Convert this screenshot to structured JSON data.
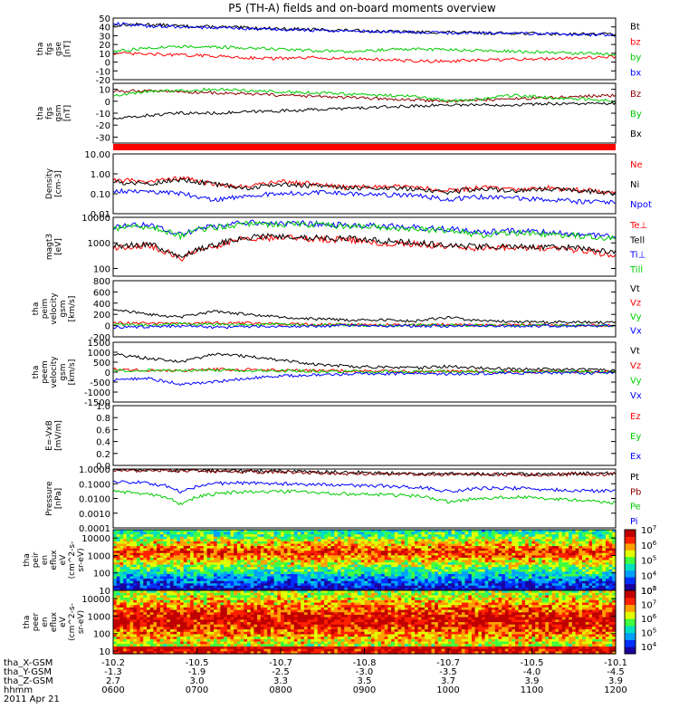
{
  "title": "P5 (TH-A) fields and on-board moments overview",
  "chart_data": [
    {
      "type": "line",
      "ylabel": "tha\nfgs\ngse\n[nT]",
      "ylim": [
        -20,
        50
      ],
      "yticks": [
        -20,
        -10,
        0,
        10,
        20,
        30,
        40,
        50
      ],
      "series": [
        {
          "name": "Bt",
          "color": "#000000",
          "values": [
            42,
            43,
            41,
            40,
            39,
            38,
            37,
            36,
            35,
            34,
            34,
            33,
            33,
            32,
            32,
            32
          ]
        },
        {
          "name": "bz",
          "color": "#ff0000",
          "values": [
            10,
            9,
            8,
            7,
            5,
            4,
            5,
            4,
            3,
            1,
            1,
            2,
            3,
            4,
            5,
            6
          ]
        },
        {
          "name": "by",
          "color": "#00cc00",
          "values": [
            12,
            16,
            18,
            17,
            16,
            15,
            13,
            12,
            14,
            15,
            14,
            13,
            12,
            11,
            10,
            9
          ]
        },
        {
          "name": "bx",
          "color": "#0000ff",
          "values": [
            44,
            41,
            40,
            39,
            38,
            37,
            36,
            35,
            35,
            34,
            33,
            33,
            33,
            32,
            31,
            31
          ]
        }
      ]
    },
    {
      "type": "line",
      "ylabel": "tha\nfgs\ngsm\n[nT]",
      "ylim": [
        -35,
        15
      ],
      "yticks": [
        -30,
        -20,
        -10,
        0,
        10
      ],
      "series": [
        {
          "name": "Bz",
          "color": "#8b0000",
          "values": [
            8,
            9,
            8,
            7,
            6,
            5,
            4,
            3,
            2,
            1,
            0,
            1,
            2,
            3,
            4,
            5
          ]
        },
        {
          "name": "By",
          "color": "#00cc00",
          "values": [
            5,
            8,
            9,
            10,
            9,
            8,
            7,
            6,
            5,
            4,
            0,
            2,
            5,
            3,
            2,
            0
          ]
        },
        {
          "name": "Bx",
          "color": "#000000",
          "values": [
            -15,
            -12,
            -10,
            -10,
            -9,
            -8,
            -7,
            -6,
            -5,
            -4,
            -3,
            -3,
            -3,
            -2,
            -2,
            -2
          ]
        }
      ]
    },
    {
      "type": "line",
      "ylabel": "Density\n[cm-3]",
      "yscale": "log",
      "ylim": [
        0.01,
        10
      ],
      "yticks": [
        0.01,
        0.1,
        1,
        10
      ],
      "ytick_labels": [
        "0.01",
        "0.10",
        "1.00",
        "10.00"
      ],
      "series": [
        {
          "name": "Ne",
          "color": "#ff0000",
          "values": [
            0.5,
            0.4,
            0.6,
            0.3,
            0.2,
            0.4,
            0.3,
            0.2,
            0.25,
            0.2,
            0.15,
            0.2,
            0.15,
            0.2,
            0.15,
            0.12
          ]
        },
        {
          "name": "Ni",
          "color": "#000000",
          "values": [
            0.4,
            0.3,
            0.5,
            0.3,
            0.2,
            0.3,
            0.25,
            0.2,
            0.2,
            0.18,
            0.12,
            0.18,
            0.14,
            0.18,
            0.14,
            0.1
          ]
        },
        {
          "name": "Npot",
          "color": "#0000ff",
          "values": [
            0.15,
            0.12,
            0.1,
            0.05,
            0.08,
            0.1,
            0.12,
            0.1,
            0.09,
            0.08,
            0.05,
            0.07,
            0.06,
            0.05,
            0.04,
            0.04
          ]
        }
      ]
    },
    {
      "type": "line",
      "ylabel": "magt3\n[eV]",
      "yscale": "log",
      "ylim": [
        50,
        10000
      ],
      "yticks": [
        100,
        1000,
        10000
      ],
      "ytick_labels": [
        "100",
        "1000",
        "10000"
      ],
      "series": [
        {
          "name": "Te⊥",
          "color": "#ff0000",
          "values": [
            600,
            800,
            200,
            700,
            1500,
            1600,
            1400,
            1300,
            1000,
            900,
            700,
            600,
            700,
            600,
            500,
            300
          ]
        },
        {
          "name": "Tell",
          "color": "#000000",
          "values": [
            700,
            900,
            250,
            800,
            1700,
            1800,
            1600,
            1500,
            1200,
            1000,
            800,
            700,
            800,
            700,
            600,
            400
          ]
        },
        {
          "name": "Ti⊥",
          "color": "#0000ff",
          "values": [
            4000,
            5000,
            2000,
            4500,
            6000,
            6000,
            5500,
            5000,
            4500,
            4000,
            3500,
            2500,
            3000,
            2500,
            2000,
            1800
          ]
        },
        {
          "name": "Till",
          "color": "#00cc00",
          "values": [
            3500,
            4500,
            1800,
            4000,
            5500,
            5500,
            5000,
            4500,
            4000,
            3500,
            3000,
            2000,
            2500,
            2200,
            1800,
            1500
          ]
        }
      ]
    },
    {
      "type": "line",
      "ylabel": "tha\npeim\nvelocity\ngsm\n[km/s]",
      "ylim": [
        -200,
        800
      ],
      "yticks": [
        -200,
        0,
        200,
        400,
        600,
        800
      ],
      "series": [
        {
          "name": "Vt",
          "color": "#000000",
          "values": [
            300,
            200,
            150,
            250,
            200,
            150,
            120,
            100,
            100,
            80,
            150,
            80,
            70,
            60,
            60,
            50
          ]
        },
        {
          "name": "Vz",
          "color": "#ff0000",
          "values": [
            50,
            40,
            30,
            50,
            40,
            30,
            20,
            20,
            10,
            10,
            20,
            10,
            10,
            10,
            5,
            5
          ]
        },
        {
          "name": "Vy",
          "color": "#00cc00",
          "values": [
            20,
            10,
            30,
            20,
            10,
            20,
            10,
            10,
            5,
            5,
            10,
            5,
            5,
            5,
            5,
            5
          ]
        },
        {
          "name": "Vx",
          "color": "#0000ff",
          "values": [
            -30,
            -20,
            -10,
            -30,
            -20,
            -10,
            -10,
            -5,
            -5,
            -5,
            -10,
            -5,
            -5,
            -5,
            -5,
            -5
          ]
        }
      ]
    },
    {
      "type": "line",
      "ylabel": "tha\npeem\nvelocity\ngsm\n[km/s]",
      "ylim": [
        -1500,
        1500
      ],
      "yticks": [
        -1500,
        -1000,
        -500,
        0,
        500,
        1000,
        1500
      ],
      "series": [
        {
          "name": "Vt",
          "color": "#000000",
          "values": [
            900,
            700,
            500,
            900,
            800,
            600,
            400,
            300,
            250,
            200,
            300,
            200,
            150,
            150,
            120,
            100
          ]
        },
        {
          "name": "Vz",
          "color": "#ff0000",
          "values": [
            150,
            100,
            80,
            150,
            120,
            100,
            80,
            60,
            40,
            30,
            50,
            30,
            30,
            20,
            20,
            20
          ]
        },
        {
          "name": "Vy",
          "color": "#00cc00",
          "values": [
            100,
            80,
            60,
            100,
            80,
            60,
            50,
            40,
            30,
            20,
            40,
            20,
            20,
            20,
            10,
            10
          ]
        },
        {
          "name": "Vx",
          "color": "#0000ff",
          "values": [
            -400,
            -300,
            -600,
            -500,
            -300,
            -200,
            -150,
            -100,
            -80,
            -60,
            -100,
            -60,
            -50,
            -40,
            -40,
            -30
          ]
        }
      ]
    },
    {
      "type": "line",
      "ylabel": "E=-VxB\n[mV/m]",
      "ylim": [
        0,
        1
      ],
      "yticks": [
        0,
        0.2,
        0.4,
        0.6,
        0.8,
        1.0
      ],
      "ytick_labels": [
        "0.0",
        "0.2",
        "0.4",
        "0.6",
        "0.8",
        "1.0"
      ],
      "series": [
        {
          "name": "Ez",
          "color": "#ff0000",
          "values": []
        },
        {
          "name": "Ey",
          "color": "#00cc00",
          "values": []
        },
        {
          "name": "Ex",
          "color": "#0000ff",
          "values": []
        }
      ]
    },
    {
      "type": "line",
      "ylabel": "Pressure\n[nPa]",
      "yscale": "log",
      "ylim": [
        0.0001,
        1
      ],
      "yticks": [
        0.0001,
        0.001,
        0.01,
        0.1,
        1
      ],
      "ytick_labels": [
        "0.0001",
        "0.0010",
        "0.0100",
        "0.1000",
        "1.0000"
      ],
      "series": [
        {
          "name": "Pt",
          "color": "#000000",
          "values": [
            0.9,
            0.9,
            0.85,
            0.8,
            0.75,
            0.7,
            0.65,
            0.6,
            0.55,
            0.5,
            0.45,
            0.45,
            0.45,
            0.45,
            0.5,
            0.5
          ]
        },
        {
          "name": "Pb",
          "color": "#8b0000",
          "values": [
            0.8,
            0.8,
            0.75,
            0.7,
            0.65,
            0.6,
            0.55,
            0.5,
            0.48,
            0.45,
            0.42,
            0.42,
            0.42,
            0.42,
            0.45,
            0.45
          ]
        },
        {
          "name": "Pe",
          "color": "#00cc00",
          "values": [
            0.03,
            0.02,
            0.004,
            0.02,
            0.03,
            0.03,
            0.025,
            0.02,
            0.018,
            0.015,
            0.006,
            0.01,
            0.012,
            0.01,
            0.008,
            0.005
          ]
        },
        {
          "name": "Pi",
          "color": "#0000ff",
          "values": [
            0.15,
            0.12,
            0.03,
            0.1,
            0.12,
            0.1,
            0.09,
            0.08,
            0.07,
            0.06,
            0.03,
            0.05,
            0.05,
            0.04,
            0.035,
            0.03
          ]
        }
      ]
    },
    {
      "type": "heatmap",
      "ylabel": "tha\npeir\nen\neflux\neV\n(cm^2-s-\nsr-eV)",
      "yscale": "log",
      "ylim": [
        10,
        30000
      ],
      "yticks": [
        10,
        100,
        1000,
        10000
      ],
      "ytick_labels": [
        "10",
        "100",
        "1000",
        "10000"
      ],
      "colorbar": {
        "min_exp": 3,
        "max_exp": 7,
        "tick_exps": [
          3,
          4,
          5,
          6,
          7
        ]
      }
    },
    {
      "type": "heatmap",
      "ylabel": "tha\npeer\nen\neflux\neV\n(cm^2-s-\nsr-eV)",
      "yscale": "log",
      "ylim": [
        7,
        30000
      ],
      "yticks": [
        10,
        100,
        1000,
        10000
      ],
      "ytick_labels": [
        "10",
        "100",
        "1000",
        "10000"
      ],
      "colorbar": {
        "min_exp": 3.5,
        "max_exp": 8,
        "tick_exps": [
          4,
          5,
          6,
          7,
          8
        ]
      }
    }
  ],
  "xaxis": {
    "ticks": [
      {
        "label": "0600",
        "x": [
          -10.2,
          -1.3,
          2.7
        ]
      },
      {
        "label": "0700",
        "x": [
          -10.5,
          -1.9,
          3.0
        ]
      },
      {
        "label": "0800",
        "x": [
          -10.7,
          -2.5,
          3.3
        ]
      },
      {
        "label": "0900",
        "x": [
          -10.8,
          -3.0,
          3.5
        ]
      },
      {
        "label": "1000",
        "x": [
          -10.7,
          -3.5,
          3.7
        ]
      },
      {
        "label": "1100",
        "x": [
          -10.5,
          -4.0,
          3.9
        ]
      },
      {
        "label": "1200",
        "x": [
          -10.1,
          -4.5,
          3.9
        ]
      }
    ],
    "row_labels": [
      "tha_X-GSM",
      "tha_Y-GSM",
      "tha_Z-GSM",
      "hhmm"
    ],
    "date": "2011 Apr 21"
  }
}
